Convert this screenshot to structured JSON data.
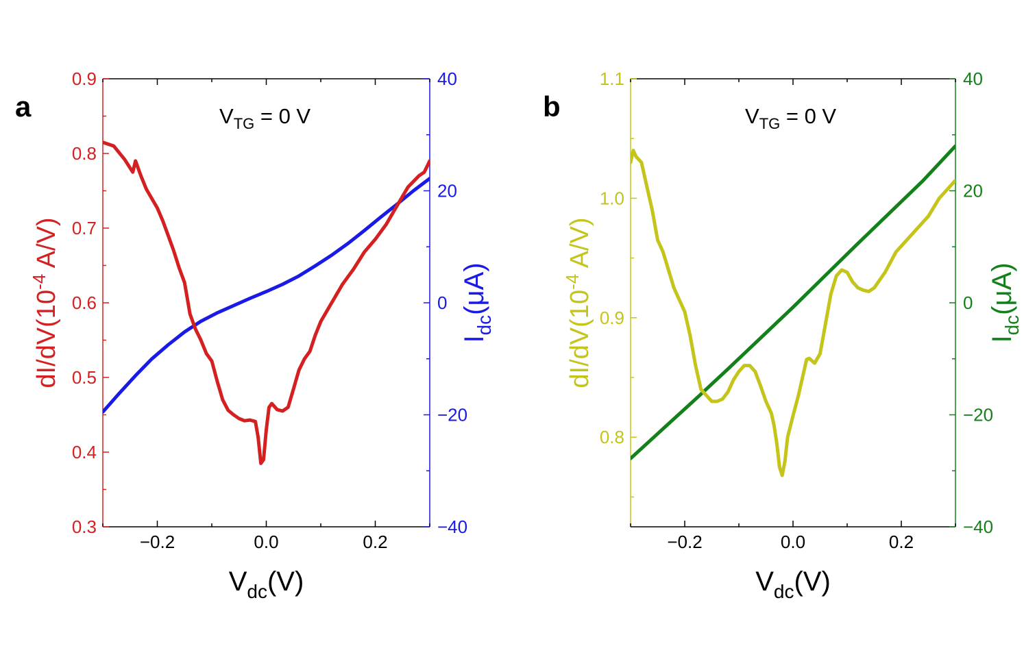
{
  "chart_data": [
    {
      "type": "line",
      "panel_label": "a",
      "annotation": {
        "main": "V",
        "sub": "TG",
        "rest": " = 0 V"
      },
      "xlabel": {
        "main": "V",
        "sub": "dc",
        "rest": "(V)"
      },
      "ylabel_left": {
        "main": "dI/dV(10",
        "sup": "-4",
        "rest": " A/V)"
      },
      "ylabel_right": {
        "main": "I",
        "sub": "dc",
        "rest": "(μA)"
      },
      "xlim": [
        -0.3,
        0.3
      ],
      "ylim_left": [
        0.3,
        0.9
      ],
      "ylim_right": [
        -40,
        40
      ],
      "xticks": [
        -0.2,
        0.0,
        0.2
      ],
      "xtick_labels": [
        "−0.2",
        "0.0",
        "0.2"
      ],
      "yticks_left": [
        0.3,
        0.4,
        0.5,
        0.6,
        0.7,
        0.8,
        0.9
      ],
      "ytick_labels_left": [
        "0.3",
        "0.4",
        "0.5",
        "0.6",
        "0.7",
        "0.8",
        "0.9"
      ],
      "yticks_right": [
        -40,
        -20,
        0,
        20,
        40
      ],
      "ytick_labels_right": [
        "−40",
        "−20",
        "0",
        "20",
        "40"
      ],
      "left_color": "#d42020",
      "right_color": "#1a1ae6",
      "series": [
        {
          "name": "dI/dV",
          "axis": "left",
          "color": "#d42020",
          "x": [
            -0.3,
            -0.28,
            -0.26,
            -0.245,
            -0.24,
            -0.23,
            -0.22,
            -0.2,
            -0.19,
            -0.18,
            -0.17,
            -0.16,
            -0.15,
            -0.14,
            -0.13,
            -0.12,
            -0.11,
            -0.1,
            -0.09,
            -0.08,
            -0.07,
            -0.06,
            -0.05,
            -0.04,
            -0.03,
            -0.02,
            -0.015,
            -0.01,
            -0.005,
            0.0,
            0.005,
            0.01,
            0.02,
            0.03,
            0.04,
            0.05,
            0.06,
            0.07,
            0.08,
            0.09,
            0.1,
            0.12,
            0.14,
            0.16,
            0.18,
            0.2,
            0.22,
            0.24,
            0.26,
            0.28,
            0.29,
            0.3
          ],
          "y": [
            0.815,
            0.81,
            0.792,
            0.775,
            0.79,
            0.77,
            0.752,
            0.727,
            0.71,
            0.69,
            0.67,
            0.647,
            0.627,
            0.585,
            0.565,
            0.55,
            0.532,
            0.522,
            0.495,
            0.47,
            0.456,
            0.45,
            0.445,
            0.442,
            0.443,
            0.441,
            0.42,
            0.385,
            0.39,
            0.43,
            0.46,
            0.465,
            0.457,
            0.455,
            0.46,
            0.485,
            0.51,
            0.525,
            0.535,
            0.557,
            0.575,
            0.6,
            0.625,
            0.645,
            0.668,
            0.685,
            0.705,
            0.73,
            0.755,
            0.77,
            0.775,
            0.79
          ]
        },
        {
          "name": "Idc",
          "axis": "right",
          "color": "#1a1ae6",
          "x": [
            -0.3,
            -0.27,
            -0.24,
            -0.21,
            -0.18,
            -0.15,
            -0.12,
            -0.09,
            -0.06,
            -0.03,
            0.0,
            0.03,
            0.06,
            0.09,
            0.12,
            0.15,
            0.18,
            0.21,
            0.24,
            0.27,
            0.3
          ],
          "y": [
            -19.5,
            -16.2,
            -13,
            -10,
            -7.5,
            -5.2,
            -3.3,
            -1.8,
            -0.5,
            0.8,
            2,
            3.3,
            4.8,
            6.6,
            8.5,
            10.6,
            12.9,
            15.3,
            17.6,
            20,
            22.2
          ]
        }
      ]
    },
    {
      "type": "line",
      "panel_label": "b",
      "annotation": {
        "main": "V",
        "sub": "TG",
        "rest": " = 0 V"
      },
      "xlabel": {
        "main": "V",
        "sub": "dc",
        "rest": "(V)"
      },
      "ylabel_left": {
        "main": "dI/dV(10",
        "sup": "-4",
        "rest": " A/V)"
      },
      "ylabel_right": {
        "main": "I",
        "sub": "dc",
        "rest": "(μA)"
      },
      "xlim": [
        -0.3,
        0.3
      ],
      "ylim_left": [
        0.725,
        1.1
      ],
      "ylim_right": [
        -40,
        40
      ],
      "xticks": [
        -0.2,
        0.0,
        0.2
      ],
      "xtick_labels": [
        "−0.2",
        "0.0",
        "0.2"
      ],
      "yticks_left": [
        0.8,
        0.9,
        1.0,
        1.1
      ],
      "ytick_labels_left": [
        "0.8",
        "0.9",
        "1.0",
        "1.1"
      ],
      "yticks_right": [
        -40,
        -20,
        0,
        20,
        40
      ],
      "ytick_labels_right": [
        "−40",
        "−20",
        "0",
        "20",
        "40"
      ],
      "left_color": "#c4c41a",
      "right_color": "#14801a",
      "series": [
        {
          "name": "dI/dV",
          "axis": "left",
          "color": "#c4c41a",
          "x": [
            -0.3,
            -0.295,
            -0.29,
            -0.28,
            -0.27,
            -0.26,
            -0.25,
            -0.24,
            -0.23,
            -0.22,
            -0.21,
            -0.2,
            -0.19,
            -0.18,
            -0.17,
            -0.16,
            -0.15,
            -0.14,
            -0.13,
            -0.12,
            -0.11,
            -0.1,
            -0.09,
            -0.08,
            -0.07,
            -0.06,
            -0.05,
            -0.04,
            -0.035,
            -0.03,
            -0.025,
            -0.02,
            -0.015,
            -0.01,
            0.0,
            0.01,
            0.02,
            0.025,
            0.03,
            0.04,
            0.05,
            0.06,
            0.07,
            0.08,
            0.09,
            0.1,
            0.11,
            0.12,
            0.13,
            0.14,
            0.15,
            0.17,
            0.19,
            0.21,
            0.23,
            0.25,
            0.27,
            0.29,
            0.3
          ],
          "y": [
            1.03,
            1.04,
            1.035,
            1.03,
            1.01,
            0.99,
            0.965,
            0.955,
            0.94,
            0.925,
            0.915,
            0.905,
            0.885,
            0.86,
            0.84,
            0.835,
            0.83,
            0.83,
            0.832,
            0.838,
            0.848,
            0.855,
            0.86,
            0.86,
            0.855,
            0.843,
            0.83,
            0.82,
            0.81,
            0.795,
            0.775,
            0.768,
            0.78,
            0.8,
            0.818,
            0.835,
            0.855,
            0.865,
            0.866,
            0.862,
            0.87,
            0.895,
            0.92,
            0.935,
            0.94,
            0.938,
            0.93,
            0.925,
            0.923,
            0.922,
            0.925,
            0.938,
            0.955,
            0.965,
            0.975,
            0.985,
            1.0,
            1.01,
            1.015
          ]
        },
        {
          "name": "Idc",
          "axis": "right",
          "color": "#14801a",
          "x": [
            -0.3,
            -0.24,
            -0.18,
            -0.12,
            -0.06,
            0.0,
            0.06,
            0.12,
            0.18,
            0.24,
            0.3
          ],
          "y": [
            -27.8,
            -22.5,
            -17.2,
            -11.8,
            -6.3,
            -0.8,
            4.9,
            10.6,
            16.2,
            21.8,
            28
          ]
        }
      ]
    }
  ]
}
